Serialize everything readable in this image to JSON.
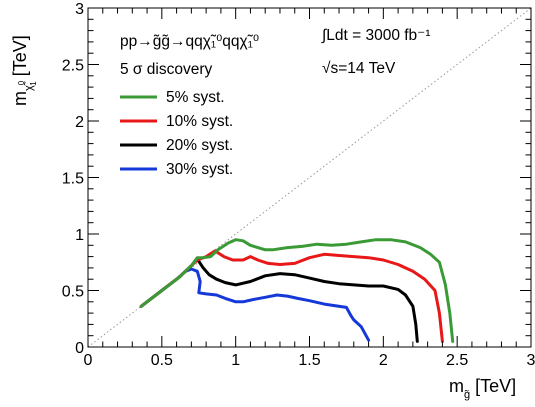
{
  "chart_data": {
    "type": "line",
    "xlabel": "m",
    "xlabel_sub": "g̃",
    "xlabel_unit": "[TeV]",
    "ylabel": "m",
    "ylabel_sub": "χ̃",
    "ylabel_sub_sup": "0",
    "ylabel_sub_idx": "1",
    "ylabel_unit": "[TeV]",
    "xlim": [
      0,
      3
    ],
    "ylim": [
      0,
      3
    ],
    "xticks": [
      {
        "v": 0,
        "label": "0"
      },
      {
        "v": 0.5,
        "label": "0.5"
      },
      {
        "v": 1,
        "label": "1"
      },
      {
        "v": 1.5,
        "label": "1.5"
      },
      {
        "v": 2,
        "label": "2"
      },
      {
        "v": 2.5,
        "label": "2.5"
      },
      {
        "v": 3,
        "label": "3"
      }
    ],
    "yticks": [
      {
        "v": 0,
        "label": "0"
      },
      {
        "v": 0.5,
        "label": "0.5"
      },
      {
        "v": 1,
        "label": "1"
      },
      {
        "v": 1.5,
        "label": "1.5"
      },
      {
        "v": 2,
        "label": "2"
      },
      {
        "v": 2.5,
        "label": "2.5"
      },
      {
        "v": 3,
        "label": "3"
      }
    ],
    "annotations": {
      "process": "pp→g̃g̃→qqχ̃₁⁰qqχ̃₁⁰",
      "significance": "5 σ discovery",
      "luminosity": "∫Ldt = 3000 fb⁻¹",
      "energy": "√s=14 TeV"
    },
    "series": [
      {
        "name": "5% syst.",
        "color": "#3a9a35",
        "points": [
          [
            0.36,
            0.36
          ],
          [
            0.5,
            0.5
          ],
          [
            0.62,
            0.62
          ],
          [
            0.7,
            0.72
          ],
          [
            0.74,
            0.79
          ],
          [
            0.78,
            0.79
          ],
          [
            0.83,
            0.8
          ],
          [
            0.88,
            0.86
          ],
          [
            0.95,
            0.92
          ],
          [
            1.0,
            0.95
          ],
          [
            1.05,
            0.94
          ],
          [
            1.1,
            0.9
          ],
          [
            1.15,
            0.88
          ],
          [
            1.2,
            0.86
          ],
          [
            1.25,
            0.86
          ],
          [
            1.35,
            0.88
          ],
          [
            1.45,
            0.89
          ],
          [
            1.55,
            0.91
          ],
          [
            1.65,
            0.9
          ],
          [
            1.75,
            0.91
          ],
          [
            1.85,
            0.93
          ],
          [
            1.95,
            0.95
          ],
          [
            2.05,
            0.95
          ],
          [
            2.15,
            0.93
          ],
          [
            2.25,
            0.88
          ],
          [
            2.32,
            0.82
          ],
          [
            2.38,
            0.75
          ],
          [
            2.42,
            0.55
          ],
          [
            2.45,
            0.3
          ],
          [
            2.47,
            0.05
          ]
        ]
      },
      {
        "name": "10% syst.",
        "color": "#e81818",
        "points": [
          [
            0.36,
            0.36
          ],
          [
            0.5,
            0.5
          ],
          [
            0.62,
            0.62
          ],
          [
            0.7,
            0.72
          ],
          [
            0.74,
            0.77
          ],
          [
            0.8,
            0.8
          ],
          [
            0.86,
            0.85
          ],
          [
            0.92,
            0.8
          ],
          [
            0.98,
            0.77
          ],
          [
            1.05,
            0.77
          ],
          [
            1.1,
            0.8
          ],
          [
            1.15,
            0.77
          ],
          [
            1.22,
            0.74
          ],
          [
            1.3,
            0.73
          ],
          [
            1.4,
            0.74
          ],
          [
            1.5,
            0.79
          ],
          [
            1.6,
            0.82
          ],
          [
            1.7,
            0.81
          ],
          [
            1.8,
            0.8
          ],
          [
            1.9,
            0.79
          ],
          [
            2.0,
            0.77
          ],
          [
            2.1,
            0.73
          ],
          [
            2.2,
            0.67
          ],
          [
            2.28,
            0.6
          ],
          [
            2.35,
            0.5
          ],
          [
            2.38,
            0.3
          ],
          [
            2.4,
            0.05
          ]
        ]
      },
      {
        "name": "20% syst.",
        "color": "#000000",
        "points": [
          [
            0.36,
            0.36
          ],
          [
            0.5,
            0.5
          ],
          [
            0.62,
            0.62
          ],
          [
            0.7,
            0.72
          ],
          [
            0.74,
            0.78
          ],
          [
            0.78,
            0.7
          ],
          [
            0.82,
            0.64
          ],
          [
            0.87,
            0.6
          ],
          [
            0.93,
            0.57
          ],
          [
            1.0,
            0.55
          ],
          [
            1.1,
            0.58
          ],
          [
            1.2,
            0.63
          ],
          [
            1.3,
            0.65
          ],
          [
            1.4,
            0.64
          ],
          [
            1.5,
            0.61
          ],
          [
            1.6,
            0.58
          ],
          [
            1.7,
            0.56
          ],
          [
            1.8,
            0.55
          ],
          [
            1.9,
            0.54
          ],
          [
            2.0,
            0.54
          ],
          [
            2.1,
            0.51
          ],
          [
            2.15,
            0.46
          ],
          [
            2.2,
            0.36
          ],
          [
            2.22,
            0.2
          ],
          [
            2.23,
            0.05
          ]
        ]
      },
      {
        "name": "30% syst.",
        "color": "#1538d8",
        "points": [
          [
            0.36,
            0.36
          ],
          [
            0.5,
            0.5
          ],
          [
            0.6,
            0.6
          ],
          [
            0.66,
            0.67
          ],
          [
            0.7,
            0.69
          ],
          [
            0.74,
            0.67
          ],
          [
            0.76,
            0.58
          ],
          [
            0.75,
            0.48
          ],
          [
            0.8,
            0.47
          ],
          [
            0.87,
            0.46
          ],
          [
            0.93,
            0.43
          ],
          [
            1.0,
            0.4
          ],
          [
            1.05,
            0.4
          ],
          [
            1.12,
            0.42
          ],
          [
            1.2,
            0.44
          ],
          [
            1.28,
            0.46
          ],
          [
            1.35,
            0.45
          ],
          [
            1.42,
            0.43
          ],
          [
            1.5,
            0.41
          ],
          [
            1.6,
            0.38
          ],
          [
            1.75,
            0.35
          ],
          [
            1.78,
            0.28
          ],
          [
            1.8,
            0.24
          ],
          [
            1.85,
            0.18
          ],
          [
            1.9,
            0.06
          ]
        ]
      }
    ],
    "diagonal": {
      "color": "#999999",
      "points": [
        [
          0,
          0
        ],
        [
          3,
          3
        ]
      ]
    }
  }
}
